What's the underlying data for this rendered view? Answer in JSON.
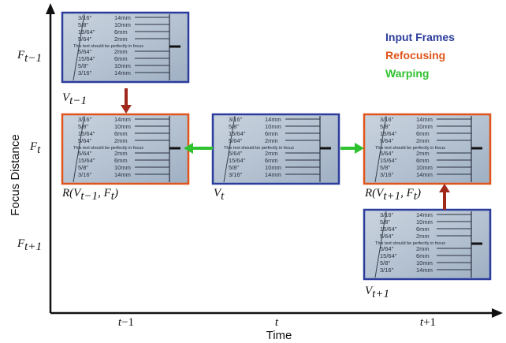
{
  "axes": {
    "x_title": "Time",
    "y_title": "Focus Distance",
    "x_ticks": [
      {
        "base": "t",
        "sub": "",
        "tail": "−1"
      },
      {
        "base": "t",
        "sub": "",
        "tail": ""
      },
      {
        "base": "t",
        "sub": "",
        "tail": "+1"
      }
    ],
    "y_ticks": [
      {
        "base": "F",
        "sub": "t−1"
      },
      {
        "base": "F",
        "sub": "t"
      },
      {
        "base": "F",
        "sub": "t+1"
      }
    ]
  },
  "legend": [
    {
      "label": "Input Frames",
      "color": "#2b3c9c"
    },
    {
      "label": "Refocusing",
      "color": "#e0531a"
    },
    {
      "label": "Warping",
      "color": "#2fc22f"
    }
  ],
  "colors": {
    "input_frame": "#2b3c9c",
    "refocus_frame": "#e0531a",
    "refocus_arrow": "#a0291c",
    "warp_arrow": "#2fc22f"
  },
  "frame_content": {
    "rows_top": [
      {
        "frac": "3/16\"",
        "mm": "14mm"
      },
      {
        "frac": "5/8\"",
        "mm": "10mm"
      },
      {
        "frac": "15/64\"",
        "mm": "6mm"
      },
      {
        "frac": "5/64\"",
        "mm": "2mm"
      }
    ],
    "note": "This text should be perfectly in focus",
    "rows_bottom": [
      {
        "frac": "5/64\"",
        "mm": "2mm"
      },
      {
        "frac": "15/64\"",
        "mm": "6mm"
      },
      {
        "frac": "5/8\"",
        "mm": "10mm"
      },
      {
        "frac": "3/16\"",
        "mm": "14mm"
      }
    ]
  },
  "frames": [
    {
      "id": "V-t-minus-1",
      "kind": "input",
      "label_pre": "V",
      "label_sub": "t−1",
      "label_post": ""
    },
    {
      "id": "R-t-minus-1",
      "kind": "refocus",
      "label_pre": "R(V",
      "label_sub": "t−1",
      "label_post": ", F",
      "label_sub2": "t",
      "label_end": ")"
    },
    {
      "id": "V-t",
      "kind": "input",
      "label_pre": "V",
      "label_sub": "t",
      "label_post": ""
    },
    {
      "id": "R-t-plus-1",
      "kind": "refocus",
      "label_pre": "R(V",
      "label_sub": "t+1",
      "label_post": ", F",
      "label_sub2": "t",
      "label_end": ")"
    },
    {
      "id": "V-t-plus-1",
      "kind": "input",
      "label_pre": "V",
      "label_sub": "t+1",
      "label_post": ""
    }
  ]
}
